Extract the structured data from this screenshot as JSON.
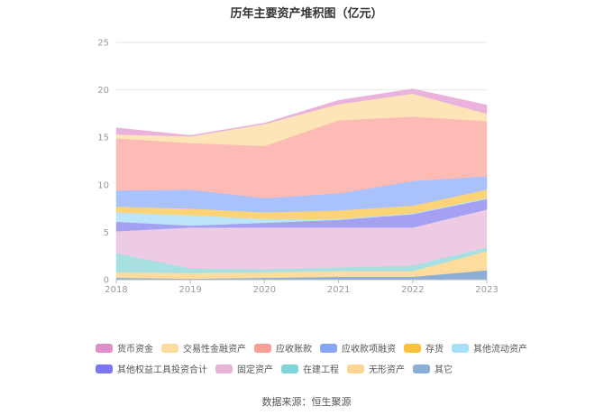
{
  "chart_data": {
    "type": "area",
    "stacked": true,
    "title": "历年主要资产堆积图（亿元）",
    "x": [
      "2018",
      "2019",
      "2020",
      "2021",
      "2022",
      "2023"
    ],
    "ylim": [
      0,
      25
    ],
    "yticks": [
      0,
      5,
      10,
      15,
      20,
      25
    ],
    "grid": true,
    "legend_position": "bottom",
    "series": [
      {
        "name": "其它",
        "color": "#8aaed8",
        "values": [
          0.2,
          0.1,
          0.2,
          0.3,
          0.3,
          1.0
        ]
      },
      {
        "name": "无形资产",
        "color": "#fddc9e",
        "values": [
          0.6,
          0.6,
          0.6,
          0.6,
          0.6,
          2.0
        ]
      },
      {
        "name": "在建工程",
        "color": "#a8e0e2",
        "values": [
          2.0,
          0.5,
          0.3,
          0.4,
          0.6,
          0.4
        ]
      },
      {
        "name": "固定资产",
        "color": "#eecbe4",
        "values": [
          2.3,
          4.3,
          4.4,
          4.2,
          4.0,
          4.0
        ]
      },
      {
        "name": "其他权益工具投资合计",
        "color": "#a4a1f3",
        "values": [
          1.0,
          0.2,
          0.5,
          0.8,
          1.4,
          1.1
        ]
      },
      {
        "name": "其他流动资产",
        "color": "#bde5f9",
        "values": [
          1.0,
          1.1,
          0.4,
          0.1,
          0.1,
          0.1
        ]
      },
      {
        "name": "存货",
        "color": "#fcd477",
        "values": [
          0.6,
          0.7,
          0.7,
          0.9,
          0.8,
          0.9
        ]
      },
      {
        "name": "应收款项融资",
        "color": "#a9c2fb",
        "values": [
          1.7,
          2.0,
          1.5,
          1.8,
          2.6,
          1.4
        ]
      },
      {
        "name": "应收账款",
        "color": "#fcbbb5",
        "values": [
          5.5,
          4.9,
          5.5,
          7.7,
          6.8,
          5.8
        ]
      },
      {
        "name": "交易性金融资产",
        "color": "#fde5b8",
        "values": [
          0.4,
          0.7,
          2.3,
          1.7,
          2.4,
          0.8
        ]
      },
      {
        "name": "货币资金",
        "color": "#eab2dc",
        "values": [
          0.7,
          0.1,
          0.1,
          0.4,
          0.5,
          0.9
        ]
      }
    ],
    "legend_colors": {
      "货币资金": "#e090c8",
      "交易性金融资产": "#fddc9e",
      "应收账款": "#f79e96",
      "应收款项融资": "#86a6f8",
      "存货": "#fac23a",
      "其他流动资产": "#a6e0f8",
      "其他权益工具投资合计": "#7c77f0",
      "固定资产": "#e8b4d6",
      "在建工程": "#7fd4d8",
      "无形资产": "#fcd494",
      "其它": "#8aaed8"
    },
    "legend_order": [
      "货币资金",
      "交易性金融资产",
      "应收账款",
      "应收款项融资",
      "存货",
      "其他流动资产",
      "其他权益工具投资合计",
      "固定资产",
      "在建工程",
      "无形资产",
      "其它"
    ]
  },
  "source_text": "数据来源：恒生聚源"
}
